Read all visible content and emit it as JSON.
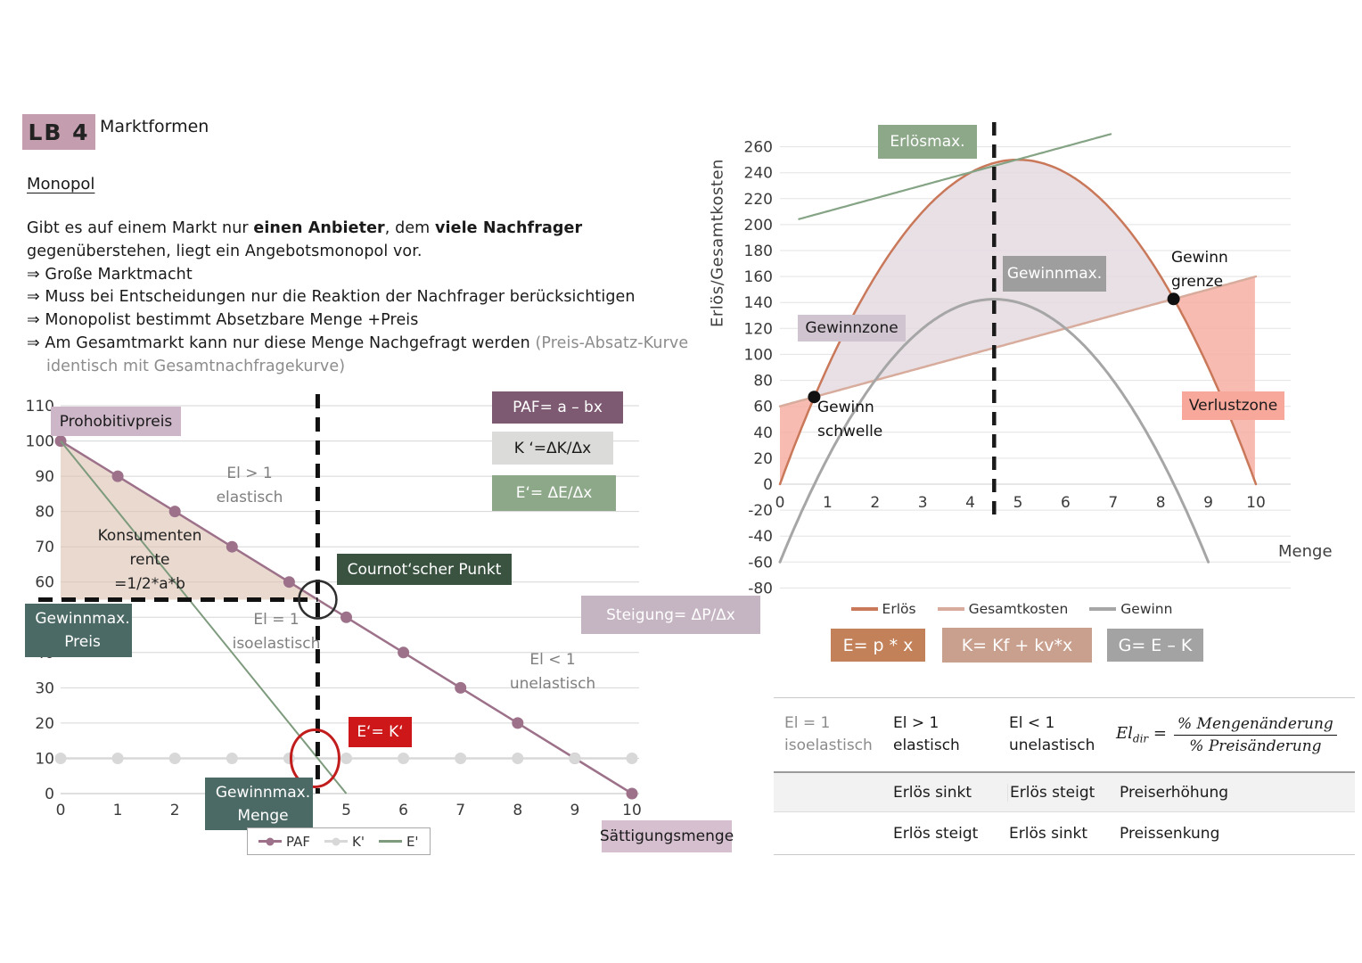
{
  "palette": {
    "badge": "#C49DAE",
    "box_prohibitiv": "#CDB6C8",
    "box_paf": "#7D5A72",
    "box_k": "#DBDBD9",
    "box_e": "#8CA888",
    "box_cournot": "#3A5240",
    "box_steigung": "#C5B4C2",
    "box_ek": "#CD1719",
    "box_teal": "#4C6A65",
    "box_saettigung": "#D6BFCF",
    "box_erlosmax": "#8CA888",
    "box_gewinnmax_gray": "#9E9E9E",
    "box_gewinnzone": "#D0C4D0",
    "box_verlustzone": "#F8A79B",
    "box_formula_e": "#C28158",
    "box_formula_k": "#C9A08E",
    "box_formula_g": "#A3A3A3"
  },
  "header": {
    "badge": "LB 4",
    "title": "Marktformen",
    "section": "Monopol"
  },
  "intro": {
    "lines": [
      [
        {
          "t": "Gibt es auf einem Markt nur "
        },
        {
          "t": "einen Anbieter",
          "b": true
        },
        {
          "t": ", dem "
        },
        {
          "t": "viele Nachfrager",
          "b": true
        }
      ],
      [
        {
          "t": "gegenüberstehen, liegt ein Angebotsmonopol vor."
        }
      ],
      [
        {
          "t": "⇒ Große Marktmacht"
        }
      ],
      [
        {
          "t": "⇒ Muss bei Entscheidungen nur die Reaktion der Nachfrager berücksichtigen"
        }
      ],
      [
        {
          "t": "⇒ Monopolist bestimmt Absetzbare Menge +Preis"
        }
      ],
      [
        {
          "t": "⇒ Am Gesamtmarkt kann nur diese Menge Nachgefragt werden "
        },
        {
          "t": "(Preis-Absatz-Kurve",
          "g": true
        }
      ],
      [
        {
          "t": "identisch mit Gesamtnachfragekurve)",
          "g": true,
          "indent": true
        }
      ]
    ]
  },
  "left_chart": {
    "labels": {
      "prohibitivpreis": "Prohobitivpreis",
      "paf_formula": "PAF= a – bx",
      "k_formula": "K ‘=ΔK/Δx",
      "e_formula": "E‘= ΔE/Δx",
      "cournot": "Cournot‘scher Punkt",
      "steigung": "Steigung= ΔP/Δx",
      "ek": "E‘= K‘",
      "gewinnmax_preis": "Gewinnmax.\nPreis",
      "gewinnmax_menge": "Gewinnmax.\nMenge",
      "saettigungsmenge": "Sättigungsmenge",
      "el_gt": "El > 1\nelastisch",
      "el_eq": "El = 1\nisoelastisch",
      "el_lt": "El < 1\nunelastisch",
      "konsumentenrente": "Konsumenten\nrente\n=1/2*a*b"
    }
  },
  "right_chart": {
    "labels": {
      "erlosmax": "Erlösmax.",
      "gewinnmax": "Gewinnmax.",
      "gewinnzone": "Gewinnzone",
      "verlustzone": "Verlustzone",
      "gewinnschwelle": "Gewinn\nschwelle",
      "gewinngrenze": "Gewinn\ngrenze",
      "menge": "Menge",
      "ytitle": "Erlös/Gesamtkosten",
      "formula_e": "E= p * x",
      "formula_k": "K= Kf + kv*x",
      "formula_g": "G= E – K"
    }
  },
  "table": {
    "headers": [
      "El = 1\nisoelastisch",
      "El > 1\nelastisch",
      "El < 1\nunelastisch"
    ],
    "formula": {
      "lhs": "El",
      "sub": "dir",
      "eq": "=",
      "num": "% Mengenänderung",
      "den": "% Preisänderung"
    },
    "rows": [
      [
        "",
        "Erlös sinkt",
        "Erlös steigt",
        "Preiserhöhung"
      ],
      [
        "",
        "Erlös steigt",
        "Erlös sinkt",
        "Preissenkung"
      ]
    ]
  },
  "chart_data": [
    {
      "id": "preis-absatz-chart",
      "type": "line",
      "xlim": [
        0,
        10
      ],
      "ylim": [
        0,
        110
      ],
      "xticks": [
        0,
        1,
        2,
        3,
        4,
        5,
        6,
        7,
        8,
        9,
        10
      ],
      "yticks": [
        0,
        10,
        20,
        30,
        40,
        50,
        60,
        70,
        80,
        90,
        100,
        110
      ],
      "series": [
        {
          "name": "PAF",
          "color": "#9C7189",
          "marker": true,
          "x": [
            0,
            1,
            2,
            3,
            4,
            5,
            6,
            7,
            8,
            9,
            10
          ],
          "y": [
            100,
            90,
            80,
            70,
            60,
            50,
            40,
            30,
            20,
            10,
            0
          ]
        },
        {
          "name": "K'",
          "color": "#D8D8D8",
          "marker": true,
          "x": [
            0,
            1,
            2,
            3,
            4,
            5,
            6,
            7,
            8,
            9,
            10
          ],
          "y": [
            10,
            10,
            10,
            10,
            10,
            10,
            10,
            10,
            10,
            10,
            10
          ]
        },
        {
          "name": "E'",
          "color": "#7E9B7E",
          "marker": false,
          "x": [
            0,
            5
          ],
          "y": [
            100,
            0
          ]
        }
      ],
      "consumer_surplus_triangle": [
        [
          0,
          100
        ],
        [
          4.5,
          55
        ],
        [
          0,
          55
        ]
      ],
      "triangle_color": "#DCC2B2",
      "dashed": {
        "vline_x": 4.5,
        "hline_y": 55,
        "hline_to_x": 4.5
      },
      "cournot_point": {
        "x": 4.5,
        "y": 55
      },
      "ek_point": {
        "x": 4.5,
        "y": 10
      },
      "legend": [
        "PAF",
        "K'",
        "E'"
      ]
    },
    {
      "id": "erloes-kosten-gewinn-chart",
      "type": "line",
      "xlim": [
        0,
        10
      ],
      "ylim": [
        -80,
        260
      ],
      "xticks": [
        0,
        1,
        2,
        3,
        4,
        5,
        6,
        7,
        8,
        9,
        10
      ],
      "yticks": [
        -80,
        -60,
        -40,
        -20,
        0,
        20,
        40,
        60,
        80,
        100,
        120,
        140,
        160,
        180,
        200,
        220,
        240,
        260
      ],
      "ylabel": "Erlös/Gesamtkosten",
      "xlabel": "Menge",
      "series": [
        {
          "name": "Erlös",
          "color": "#C9785A",
          "quad": [
            -10,
            100,
            0
          ],
          "domain": [
            0,
            10
          ],
          "width": 2.5
        },
        {
          "name": "Gesamtkosten",
          "color": "#D8AC9C",
          "quad": [
            0,
            10,
            60
          ],
          "domain": [
            0,
            10
          ],
          "width": 2.5
        },
        {
          "name": "Gewinn",
          "color": "#A6A6A6",
          "quad": [
            -10,
            90,
            -60
          ],
          "domain": [
            0,
            9
          ],
          "width": 3
        },
        {
          "name": "Tangente",
          "color": "#85A385",
          "quad": [
            0,
            10,
            200.25
          ],
          "domain": [
            0.4,
            6.95
          ],
          "width": 2.2,
          "in_legend": false
        }
      ],
      "points": [
        {
          "name": "Gewinnschwelle",
          "x": 0.72,
          "y": 67.2
        },
        {
          "name": "Gewinngrenze",
          "x": 8.27,
          "y": 142.7
        }
      ],
      "zones": {
        "profit": [
          0.72,
          8.27
        ],
        "loss_left": [
          0,
          0.72
        ],
        "loss_right": [
          8.27,
          10
        ],
        "profit_color": "#E4D8E0",
        "loss_color": "#F7AFA3"
      },
      "dashed": {
        "vline_x": 4.5
      },
      "legend": [
        "Erlös",
        "Gesamtkosten",
        "Gewinn"
      ]
    }
  ]
}
